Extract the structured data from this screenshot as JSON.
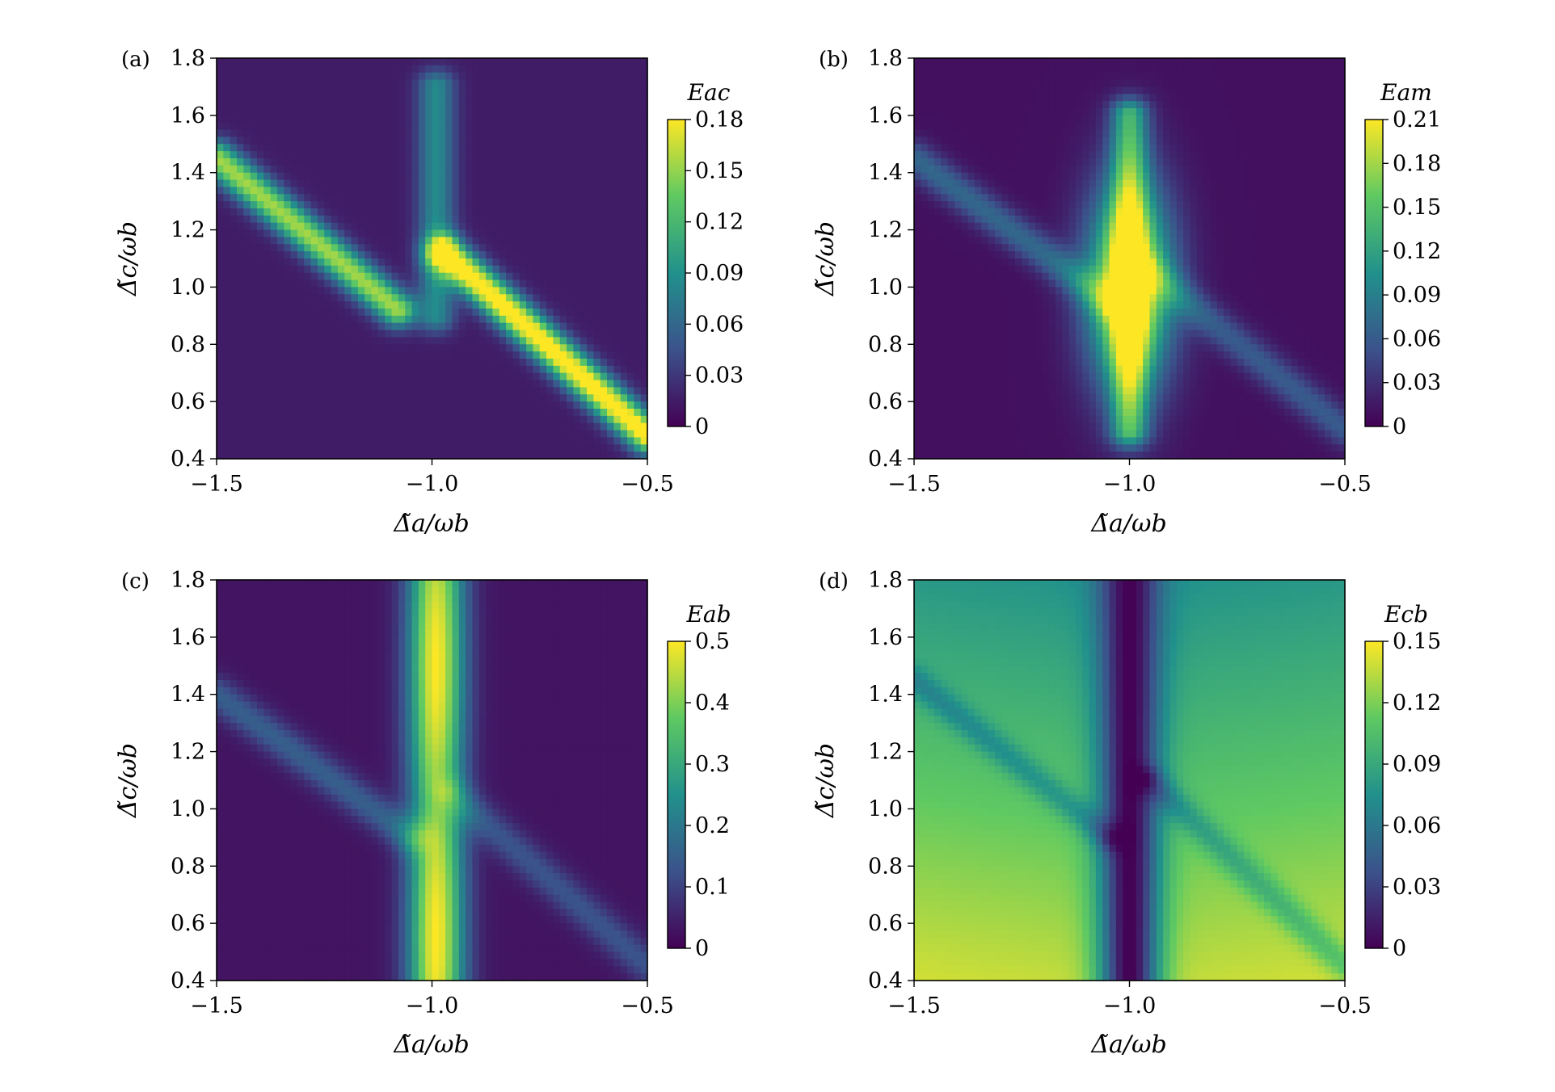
{
  "figure": {
    "colormap": "viridis",
    "colormap_stops": [
      "#440154",
      "#3b528b",
      "#21918c",
      "#5ec962",
      "#fde725"
    ],
    "panels": [
      {
        "label": "(a)",
        "xlabel": "Δ̃a/ωb",
        "ylabel": "Δ̃c/ωb",
        "colorbar_title": "Eac"
      },
      {
        "label": "(b)",
        "xlabel": "Δ̃a/ωb",
        "ylabel": "Δ̃c/ωb",
        "colorbar_title": "Eam"
      },
      {
        "label": "(c)",
        "xlabel": "Δ̃a/ωb",
        "ylabel": "Δ̃c/ωb",
        "colorbar_title": "Eab"
      },
      {
        "label": "(d)",
        "xlabel": "Δ̃a/ωb",
        "ylabel": "Δ̃c/ωb",
        "colorbar_title": "Ecb"
      }
    ]
  },
  "chart_data": [
    {
      "type": "heatmap",
      "panel": "(a)",
      "quantity": "Eac",
      "xlim": [
        -1.5,
        -0.5
      ],
      "ylim": [
        0.4,
        1.8
      ],
      "x_ticks": [
        "−1.5",
        "−1.0",
        "−0.5"
      ],
      "y_ticks": [
        "0.4",
        "0.6",
        "0.8",
        "1.0",
        "1.2",
        "1.4",
        "1.6",
        "1.8"
      ],
      "colorbar_range": [
        0,
        0.18
      ],
      "colorbar_ticks": [
        "0",
        "0.03",
        "0.06",
        "0.09",
        "0.12",
        "0.15",
        "0.18"
      ],
      "features": [
        {
          "kind": "ridge",
          "from": [
            -1.5,
            1.45
          ],
          "to": [
            -1.08,
            0.92
          ],
          "peak": 0.14
        },
        {
          "kind": "ridge",
          "from": [
            -0.97,
            1.12
          ],
          "to": [
            -0.5,
            0.48
          ],
          "peak": 0.18
        },
        {
          "kind": "ridge",
          "from": [
            -0.99,
            1.7
          ],
          "to": [
            -0.99,
            0.9
          ],
          "peak": 0.07
        }
      ],
      "background": 0.015
    },
    {
      "type": "heatmap",
      "panel": "(b)",
      "quantity": "Eam",
      "xlim": [
        -1.5,
        -0.5
      ],
      "ylim": [
        0.4,
        1.8
      ],
      "x_ticks": [
        "−1.5",
        "−1.0",
        "−0.5"
      ],
      "y_ticks": [
        "0.4",
        "0.6",
        "0.8",
        "1.0",
        "1.2",
        "1.4",
        "1.6",
        "1.8"
      ],
      "colorbar_range": [
        0,
        0.21
      ],
      "colorbar_ticks": [
        "0",
        "0.03",
        "0.06",
        "0.09",
        "0.12",
        "0.15",
        "0.18",
        "0.21"
      ],
      "features": [
        {
          "kind": "peak",
          "center": [
            -1.0,
            1.0
          ],
          "peak": 0.21
        },
        {
          "kind": "ridge",
          "from": [
            -1.0,
            1.6
          ],
          "to": [
            -1.0,
            0.5
          ],
          "peak": 0.12
        },
        {
          "kind": "ridge",
          "from": [
            -1.5,
            1.45
          ],
          "to": [
            -1.05,
            0.95
          ],
          "peak": 0.06
        },
        {
          "kind": "ridge",
          "from": [
            -0.95,
            1.05
          ],
          "to": [
            -0.5,
            0.5
          ],
          "peak": 0.05
        }
      ],
      "background": 0.01
    },
    {
      "type": "heatmap",
      "panel": "(c)",
      "quantity": "Eab",
      "xlim": [
        -1.5,
        -0.5
      ],
      "ylim": [
        0.4,
        1.8
      ],
      "x_ticks": [
        "−1.5",
        "−1.0",
        "−0.5"
      ],
      "y_ticks": [
        "0.4",
        "0.6",
        "0.8",
        "1.0",
        "1.2",
        "1.4",
        "1.6",
        "1.8"
      ],
      "colorbar_range": [
        0,
        0.5
      ],
      "colorbar_ticks": [
        "0",
        "0.1",
        "0.2",
        "0.3",
        "0.4",
        "0.5"
      ],
      "features": [
        {
          "kind": "vertical-band",
          "center_x": -0.99,
          "peak": 0.5
        },
        {
          "kind": "ridge",
          "from": [
            -1.5,
            1.4
          ],
          "to": [
            -1.05,
            0.9
          ],
          "peak": 0.12
        },
        {
          "kind": "ridge",
          "from": [
            -0.95,
            1.05
          ],
          "to": [
            -0.5,
            0.45
          ],
          "peak": 0.1
        }
      ],
      "background": 0.03
    },
    {
      "type": "heatmap",
      "panel": "(d)",
      "quantity": "Ecb",
      "xlim": [
        -1.5,
        -0.5
      ],
      "ylim": [
        0.4,
        1.8
      ],
      "x_ticks": [
        "−1.5",
        "−1.0",
        "−0.5"
      ],
      "y_ticks": [
        "0.4",
        "0.6",
        "0.8",
        "1.0",
        "1.2",
        "1.4",
        "1.6",
        "1.8"
      ],
      "colorbar_range": [
        0,
        0.15
      ],
      "colorbar_ticks": [
        "0",
        "0.03",
        "0.06",
        "0.09",
        "0.12",
        "0.15"
      ],
      "features": [
        {
          "kind": "vertical-gap",
          "center_x": -1.0,
          "min": 0.0
        },
        {
          "kind": "diagonal-dip",
          "from": [
            -1.5,
            1.45
          ],
          "to": [
            -1.05,
            0.9
          ]
        },
        {
          "kind": "diagonal-dip",
          "from": [
            -0.95,
            1.1
          ],
          "to": [
            -0.5,
            0.45
          ]
        }
      ],
      "background": 0.1
    }
  ]
}
